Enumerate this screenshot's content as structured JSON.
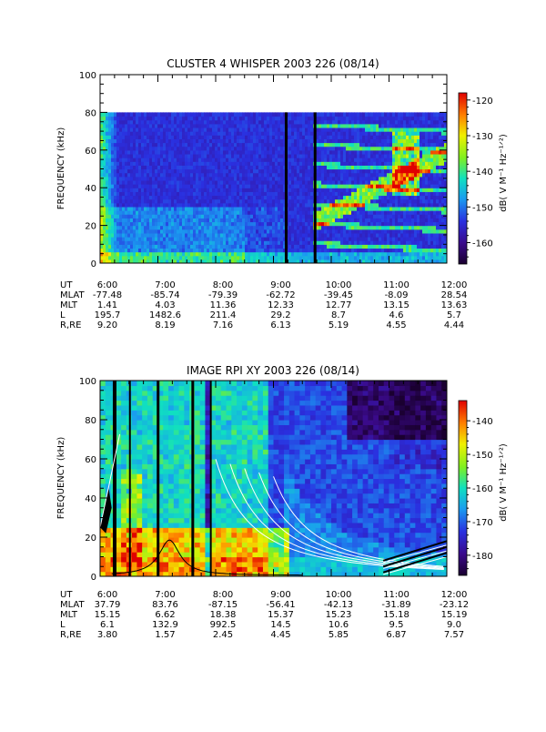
{
  "chart_data": [
    {
      "type": "heatmap",
      "title": "CLUSTER 4 WHISPER 2003 226 (08/14)",
      "ylabel": "FREQUENCY (kHz)",
      "ylim": [
        0,
        100
      ],
      "y_ticks": [
        "0",
        "20",
        "40",
        "60",
        "80",
        "100"
      ],
      "data_max_frequency": 80,
      "colorbar": {
        "label": "dB( V M⁻¹ Hz⁻¹ᐟ²)",
        "range": [
          -166,
          -118
        ],
        "ticks": [
          "-120",
          "-130",
          "-140",
          "-150",
          "-160"
        ],
        "tick_values": [
          -120,
          -130,
          -140,
          -150,
          -160
        ]
      },
      "ephemeris": {
        "labels": [
          "UT",
          "MLAT",
          "MLT",
          "L",
          "R,RE"
        ],
        "rows": [
          [
            "6:00",
            "7:00",
            "8:00",
            "9:00",
            "10:00",
            "11:00",
            "12:00"
          ],
          [
            "-77.48",
            "-85.74",
            "-79.39",
            "-62.72",
            "-39.45",
            "-8.09",
            "28.54"
          ],
          [
            "1.41",
            "4.03",
            "11.36",
            "12.33",
            "12.77",
            "13.15",
            "13.63"
          ],
          [
            "195.7",
            "1482.6",
            "211.4",
            "29.2",
            "8.7",
            "4.6",
            "5.7"
          ],
          [
            "9.20",
            "8.19",
            "7.16",
            "6.13",
            "5.19",
            "4.55",
            "4.44"
          ]
        ]
      },
      "x_hours": [
        6,
        7,
        8,
        9,
        10,
        11,
        12
      ]
    },
    {
      "type": "heatmap",
      "title": "IMAGE RPI XY 2003 226 (08/14)",
      "ylabel": "FREQUENCY (kHz)",
      "ylim": [
        0,
        100
      ],
      "y_ticks": [
        "0",
        "20",
        "40",
        "60",
        "80",
        "100"
      ],
      "colorbar": {
        "label": "dB( V M⁻¹ Hz⁻¹ᐟ²)",
        "range": [
          -186,
          -134
        ],
        "ticks": [
          "-140",
          "-150",
          "-160",
          "-170",
          "-180"
        ],
        "tick_values": [
          -140,
          -150,
          -160,
          -170,
          -180
        ]
      },
      "ephemeris": {
        "labels": [
          "UT",
          "MLAT",
          "MLT",
          "L",
          "R,RE"
        ],
        "rows": [
          [
            "6:00",
            "7:00",
            "8:00",
            "9:00",
            "10:00",
            "11:00",
            "12:00"
          ],
          [
            "37.79",
            "83.76",
            "-87.15",
            "-56.41",
            "-42.13",
            "-31.89",
            "-23.12"
          ],
          [
            "15.15",
            "6.62",
            "18.38",
            "15.37",
            "15.23",
            "15.18",
            "15.19"
          ],
          [
            "6.1",
            "132.9",
            "992.5",
            "14.5",
            "10.6",
            "9.5",
            "9.0"
          ],
          [
            "3.80",
            "1.57",
            "2.45",
            "4.45",
            "5.85",
            "6.87",
            "7.57"
          ]
        ]
      },
      "x_hours": [
        6,
        7,
        8,
        9,
        10,
        11,
        12
      ]
    }
  ]
}
